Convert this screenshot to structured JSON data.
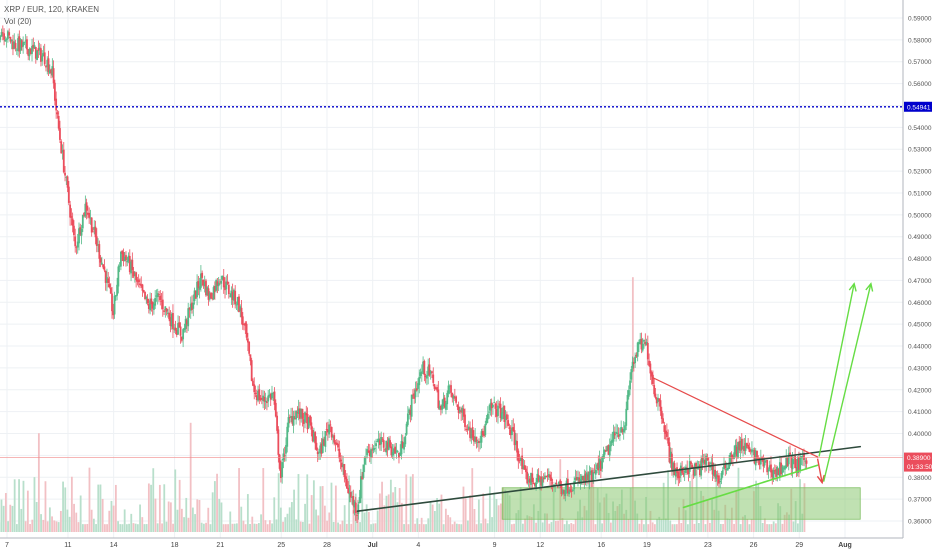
{
  "header": {
    "title": "XRP / EUR, 120, KRAKEN",
    "volume_label": "Vol (20)"
  },
  "colors": {
    "up": "#53b987",
    "down": "#eb4d5c",
    "vol_up": "#b8dfcb",
    "vol_down": "#f2c0c4",
    "h_line": "#0000cc",
    "last_price_line": "#f28b8b",
    "support_line": "#2e4a3c",
    "upper_triangle_line": "#e64a4a",
    "lower_triangle_line": "#66dd44",
    "projection_arrows": "#66dd44",
    "down_arrow": "#e64a4a",
    "zone_fill": "#8cc872",
    "grid": "#eef1f4"
  },
  "chart_data": {
    "type": "candlestick",
    "title": "XRP / EUR, 120, KRAKEN",
    "indicator": "Vol (20)",
    "xlim": [
      "Jun 6",
      "Aug 4"
    ],
    "ylim": [
      0.357,
      0.6
    ],
    "x_tick_labels": [
      "7",
      "11",
      "14",
      "18",
      "21",
      "25",
      "28",
      "Jul",
      "4",
      "9",
      "12",
      "16",
      "19",
      "23",
      "26",
      "29",
      "Aug"
    ],
    "x_tick_dates": [
      7,
      11,
      14,
      18,
      21,
      25,
      28,
      31,
      34,
      39,
      42,
      46,
      49,
      53,
      56,
      59,
      62
    ],
    "y_ticks": [
      "0.59000",
      "0.58000",
      "0.57000",
      "0.56000",
      "0.55000",
      "0.54000",
      "0.53000",
      "0.52000",
      "0.51000",
      "0.50000",
      "0.49000",
      "0.48000",
      "0.47000",
      "0.46000",
      "0.45000",
      "0.44000",
      "0.43000",
      "0.42000",
      "0.41000",
      "0.40000",
      "0.39000",
      "0.38000",
      "0.37000",
      "0.36000"
    ],
    "horizontal_line": {
      "label": "0.54941",
      "value": 0.54941
    },
    "last_price": {
      "label": "0.38900",
      "value": 0.389,
      "countdown": "01:33:50"
    },
    "price_path": [
      [
        6.0,
        0.575
      ],
      [
        6.6,
        0.585
      ],
      [
        7.5,
        0.578
      ],
      [
        8.5,
        0.576
      ],
      [
        9.5,
        0.572
      ],
      [
        10.0,
        0.565
      ],
      [
        10.3,
        0.545
      ],
      [
        10.8,
        0.52
      ],
      [
        11.5,
        0.485
      ],
      [
        12.2,
        0.505
      ],
      [
        12.8,
        0.49
      ],
      [
        13.5,
        0.472
      ],
      [
        14.0,
        0.455
      ],
      [
        14.5,
        0.483
      ],
      [
        15.0,
        0.478
      ],
      [
        15.6,
        0.468
      ],
      [
        16.3,
        0.458
      ],
      [
        17.0,
        0.462
      ],
      [
        17.8,
        0.452
      ],
      [
        18.5,
        0.445
      ],
      [
        19.2,
        0.46
      ],
      [
        19.8,
        0.472
      ],
      [
        20.3,
        0.462
      ],
      [
        21.0,
        0.472
      ],
      [
        21.6,
        0.465
      ],
      [
        22.2,
        0.46
      ],
      [
        22.7,
        0.445
      ],
      [
        23.2,
        0.42
      ],
      [
        23.8,
        0.415
      ],
      [
        24.5,
        0.418
      ],
      [
        25.0,
        0.38
      ],
      [
        25.5,
        0.405
      ],
      [
        26.0,
        0.41
      ],
      [
        26.8,
        0.405
      ],
      [
        27.5,
        0.39
      ],
      [
        28.2,
        0.405
      ],
      [
        28.8,
        0.39
      ],
      [
        29.5,
        0.372
      ],
      [
        30.0,
        0.365
      ],
      [
        30.5,
        0.39
      ],
      [
        31.2,
        0.395
      ],
      [
        32.0,
        0.395
      ],
      [
        32.8,
        0.39
      ],
      [
        33.6,
        0.415
      ],
      [
        34.3,
        0.43
      ],
      [
        35.0,
        0.425
      ],
      [
        35.5,
        0.41
      ],
      [
        36.0,
        0.42
      ],
      [
        36.8,
        0.41
      ],
      [
        37.5,
        0.4
      ],
      [
        38.2,
        0.398
      ],
      [
        38.8,
        0.412
      ],
      [
        39.5,
        0.41
      ],
      [
        40.3,
        0.398
      ],
      [
        41.0,
        0.38
      ],
      [
        41.8,
        0.378
      ],
      [
        42.5,
        0.38
      ],
      [
        43.5,
        0.375
      ],
      [
        44.5,
        0.378
      ],
      [
        45.5,
        0.38
      ],
      [
        46.3,
        0.39
      ],
      [
        47.0,
        0.4
      ],
      [
        47.6,
        0.405
      ],
      [
        48.0,
        0.43
      ],
      [
        48.5,
        0.44
      ],
      [
        49.0,
        0.44
      ],
      [
        49.5,
        0.42
      ],
      [
        50.0,
        0.41
      ],
      [
        50.5,
        0.39
      ],
      [
        51.0,
        0.38
      ],
      [
        51.6,
        0.385
      ],
      [
        52.3,
        0.383
      ],
      [
        53.0,
        0.388
      ],
      [
        53.8,
        0.378
      ],
      [
        54.5,
        0.39
      ],
      [
        55.3,
        0.395
      ],
      [
        56.0,
        0.39
      ],
      [
        56.8,
        0.385
      ],
      [
        57.5,
        0.382
      ],
      [
        58.3,
        0.388
      ],
      [
        59.0,
        0.385
      ],
      [
        59.5,
        0.389
      ]
    ],
    "volume_scale_max": 100,
    "volume_spikes": [
      [
        48.0,
        0.98
      ],
      [
        45.5,
        0.45
      ],
      [
        19.0,
        0.42
      ],
      [
        9.0,
        0.38
      ],
      [
        6.5,
        0.35
      ],
      [
        32.5,
        0.3
      ],
      [
        43.2,
        0.28
      ]
    ],
    "annotations": {
      "support_line": {
        "start": [
          30.0,
          0.3645
        ],
        "end": [
          63.0,
          0.394
        ]
      },
      "upper_triangle": {
        "start": [
          49.4,
          0.4255
        ],
        "end": [
          60.2,
          0.3893
        ]
      },
      "lower_triangle": {
        "start": [
          51.4,
          0.3662
        ],
        "end": [
          60.2,
          0.3855
        ]
      },
      "demand_zone": {
        "x_range": [
          39.5,
          63.0
        ],
        "y_range": [
          0.3608,
          0.3752
        ]
      },
      "down_arrow": {
        "start": [
          60.2,
          0.3885
        ],
        "end": [
          60.5,
          0.3775
        ]
      },
      "up_arrow_1": {
        "start": [
          60.3,
          0.3895
        ],
        "end": [
          62.6,
          0.4685
        ]
      },
      "up_arrow_2": {
        "start": [
          60.6,
          0.378
        ],
        "end": [
          63.7,
          0.4685
        ]
      }
    }
  }
}
